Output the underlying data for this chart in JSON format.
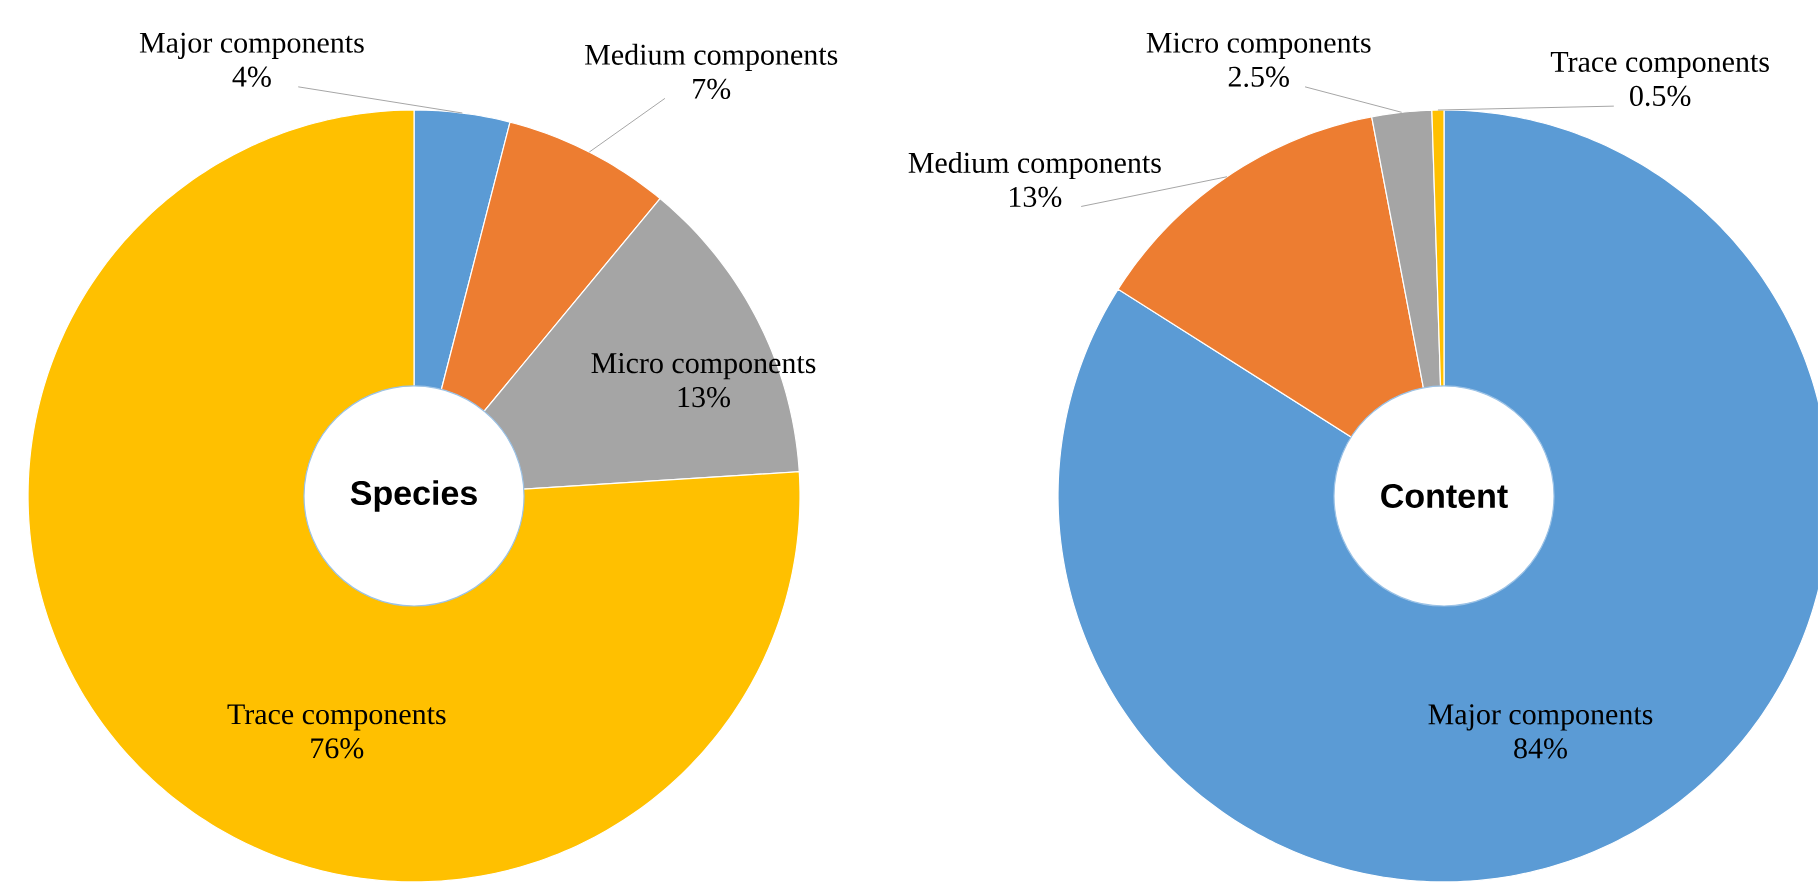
{
  "chart_data": [
    {
      "type": "donut",
      "title": "Species",
      "categories": [
        "Major components",
        "Medium components",
        "Micro components",
        "Trace components"
      ],
      "values": [
        4,
        7,
        13,
        76
      ],
      "value_labels": [
        "4%",
        "7%",
        "13%",
        "76%"
      ],
      "colors": [
        "#5b9bd5",
        "#ed7d31",
        "#a5a5a5",
        "#ffc000"
      ]
    },
    {
      "type": "donut",
      "title": "Content",
      "categories": [
        "Major components",
        "Medium components",
        "Micro components",
        "Trace components"
      ],
      "values": [
        84,
        13,
        2.5,
        0.5
      ],
      "value_labels": [
        "84%",
        "13%",
        "2.5%",
        "0.5%"
      ],
      "colors": [
        "#5b9bd5",
        "#ed7d31",
        "#a5a5a5",
        "#ffc000"
      ]
    }
  ]
}
